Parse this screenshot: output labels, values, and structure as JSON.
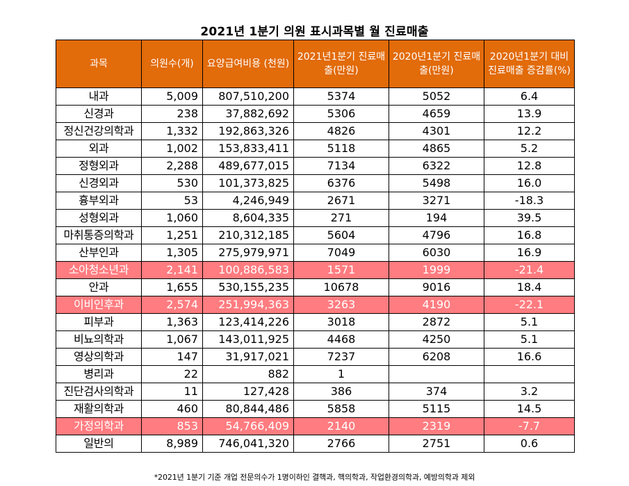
{
  "title": "2021년 1분기 의원 표시과목별 월 진료매출",
  "headers": [
    "과목",
    "의원수(개)",
    "요양급여비용 (천원)",
    "2021년1분기 진료매출(만원)",
    "2020년1분기 진료매출(만원)",
    "2020년1분기 대비 진료매출 증감률(%)"
  ],
  "rows": [
    {
      "dept": "내과",
      "clinics": "5,009",
      "cost": "807,510,200",
      "rev2021": "5374",
      "rev2020": "5052",
      "change": "6.4",
      "highlight": false
    },
    {
      "dept": "신경과",
      "clinics": "238",
      "cost": "37,882,692",
      "rev2021": "5306",
      "rev2020": "4659",
      "change": "13.9",
      "highlight": false
    },
    {
      "dept": "정신건강의학과",
      "clinics": "1,332",
      "cost": "192,863,326",
      "rev2021": "4826",
      "rev2020": "4301",
      "change": "12.2",
      "highlight": false
    },
    {
      "dept": "외과",
      "clinics": "1,002",
      "cost": "153,833,411",
      "rev2021": "5118",
      "rev2020": "4865",
      "change": "5.2",
      "highlight": false
    },
    {
      "dept": "정형외과",
      "clinics": "2,288",
      "cost": "489,677,015",
      "rev2021": "7134",
      "rev2020": "6322",
      "change": "12.8",
      "highlight": false
    },
    {
      "dept": "신경외과",
      "clinics": "530",
      "cost": "101,373,825",
      "rev2021": "6376",
      "rev2020": "5498",
      "change": "16.0",
      "highlight": false
    },
    {
      "dept": "흉부외과",
      "clinics": "53",
      "cost": "4,246,949",
      "rev2021": "2671",
      "rev2020": "3271",
      "change": "-18.3",
      "highlight": false
    },
    {
      "dept": "성형외과",
      "clinics": "1,060",
      "cost": "8,604,335",
      "rev2021": "271",
      "rev2020": "194",
      "change": "39.5",
      "highlight": false
    },
    {
      "dept": "마취통증의학과",
      "clinics": "1,251",
      "cost": "210,312,185",
      "rev2021": "5604",
      "rev2020": "4796",
      "change": "16.8",
      "highlight": false
    },
    {
      "dept": "산부인과",
      "clinics": "1,305",
      "cost": "275,979,971",
      "rev2021": "7049",
      "rev2020": "6030",
      "change": "16.9",
      "highlight": false
    },
    {
      "dept": "소아청소년과",
      "clinics": "2,141",
      "cost": "100,886,583",
      "rev2021": "1571",
      "rev2020": "1999",
      "change": "-21.4",
      "highlight": true
    },
    {
      "dept": "안과",
      "clinics": "1,655",
      "cost": "530,155,235",
      "rev2021": "10678",
      "rev2020": "9016",
      "change": "18.4",
      "highlight": false
    },
    {
      "dept": "이비인후과",
      "clinics": "2,574",
      "cost": "251,994,363",
      "rev2021": "3263",
      "rev2020": "4190",
      "change": "-22.1",
      "highlight": true
    },
    {
      "dept": "피부과",
      "clinics": "1,363",
      "cost": "123,414,226",
      "rev2021": "3018",
      "rev2020": "2872",
      "change": "5.1",
      "highlight": false
    },
    {
      "dept": "비뇨의학과",
      "clinics": "1,067",
      "cost": "143,011,925",
      "rev2021": "4468",
      "rev2020": "4250",
      "change": "5.1",
      "highlight": false
    },
    {
      "dept": "영상의학과",
      "clinics": "147",
      "cost": "31,917,021",
      "rev2021": "7237",
      "rev2020": "6208",
      "change": "16.6",
      "highlight": false
    },
    {
      "dept": "병리과",
      "clinics": "22",
      "cost": "882",
      "rev2021": "1",
      "rev2020": "",
      "change": "",
      "highlight": false
    },
    {
      "dept": "진단검사의학과",
      "clinics": "11",
      "cost": "127,428",
      "rev2021": "386",
      "rev2020": "374",
      "change": "3.2",
      "highlight": false
    },
    {
      "dept": "재활의학과",
      "clinics": "460",
      "cost": "80,844,486",
      "rev2021": "5858",
      "rev2020": "5115",
      "change": "14.5",
      "highlight": false
    },
    {
      "dept": "가정의학과",
      "clinics": "853",
      "cost": "54,766,409",
      "rev2021": "2140",
      "rev2020": "2319",
      "change": "-7.7",
      "highlight": true
    },
    {
      "dept": "일반의",
      "clinics": "8,989",
      "cost": "746,041,320",
      "rev2021": "2766",
      "rev2020": "2751",
      "change": "0.6",
      "highlight": false
    }
  ],
  "colors": {
    "header_bg": "#e26b0a",
    "header_text": "#ffffff",
    "highlight_bg": "#ff7c80",
    "highlight_text": "#ffffff"
  },
  "footnote": "*2021년 1분기 기준 개업 전문의수가 1명이하인 결핵과, 핵의학과, 작업환경의학과, 예방의학과 제외"
}
